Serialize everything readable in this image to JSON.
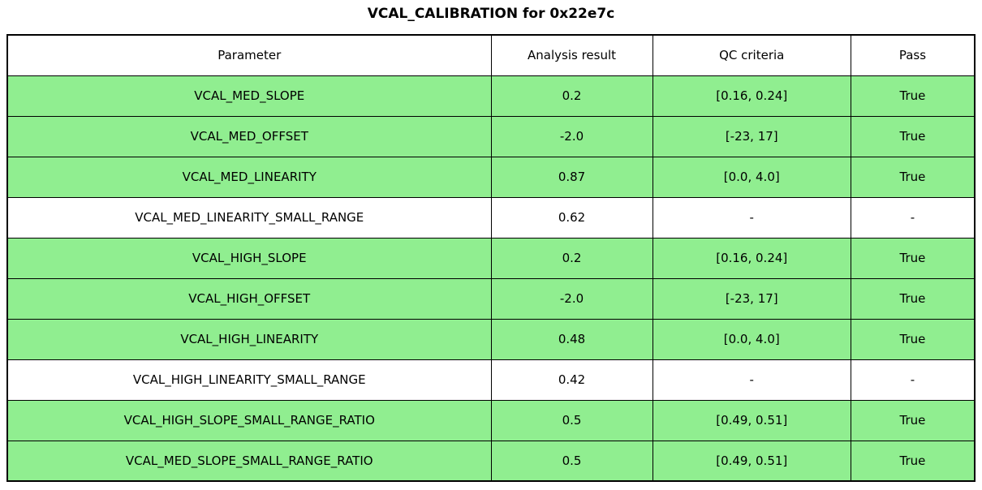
{
  "title": "VCAL_CALIBRATION for 0x22e7c",
  "colors": {
    "pass_row_green": "#90ee90",
    "neutral_row_white": "#ffffff",
    "border_black": "#000000"
  },
  "table": {
    "headers": [
      "Parameter",
      "Analysis result",
      "QC criteria",
      "Pass"
    ],
    "rows": [
      {
        "parameter": "VCAL_MED_SLOPE",
        "result": "0.2",
        "qc": "[0.16, 0.24]",
        "pass": "True",
        "state": "pass"
      },
      {
        "parameter": "VCAL_MED_OFFSET",
        "result": "-2.0",
        "qc": "[-23, 17]",
        "pass": "True",
        "state": "pass"
      },
      {
        "parameter": "VCAL_MED_LINEARITY",
        "result": "0.87",
        "qc": "[0.0, 4.0]",
        "pass": "True",
        "state": "pass"
      },
      {
        "parameter": "VCAL_MED_LINEARITY_SMALL_RANGE",
        "result": "0.62",
        "qc": "-",
        "pass": "-",
        "state": "neutral"
      },
      {
        "parameter": "VCAL_HIGH_SLOPE",
        "result": "0.2",
        "qc": "[0.16, 0.24]",
        "pass": "True",
        "state": "pass"
      },
      {
        "parameter": "VCAL_HIGH_OFFSET",
        "result": "-2.0",
        "qc": "[-23, 17]",
        "pass": "True",
        "state": "pass"
      },
      {
        "parameter": "VCAL_HIGH_LINEARITY",
        "result": "0.48",
        "qc": "[0.0, 4.0]",
        "pass": "True",
        "state": "pass"
      },
      {
        "parameter": "VCAL_HIGH_LINEARITY_SMALL_RANGE",
        "result": "0.42",
        "qc": "-",
        "pass": "-",
        "state": "neutral"
      },
      {
        "parameter": "VCAL_HIGH_SLOPE_SMALL_RANGE_RATIO",
        "result": "0.5",
        "qc": "[0.49, 0.51]",
        "pass": "True",
        "state": "pass"
      },
      {
        "parameter": "VCAL_MED_SLOPE_SMALL_RANGE_RATIO",
        "result": "0.5",
        "qc": "[0.49, 0.51]",
        "pass": "True",
        "state": "pass"
      }
    ]
  },
  "chart_data": {
    "type": "table",
    "title": "VCAL_CALIBRATION for 0x22e7c",
    "columns": [
      "Parameter",
      "Analysis result",
      "QC criteria",
      "Pass"
    ],
    "rows": [
      [
        "VCAL_MED_SLOPE",
        "0.2",
        "[0.16, 0.24]",
        "True"
      ],
      [
        "VCAL_MED_OFFSET",
        "-2.0",
        "[-23, 17]",
        "True"
      ],
      [
        "VCAL_MED_LINEARITY",
        "0.87",
        "[0.0, 4.0]",
        "True"
      ],
      [
        "VCAL_MED_LINEARITY_SMALL_RANGE",
        "0.62",
        "-",
        "-"
      ],
      [
        "VCAL_HIGH_SLOPE",
        "0.2",
        "[0.16, 0.24]",
        "True"
      ],
      [
        "VCAL_HIGH_OFFSET",
        "-2.0",
        "[-23, 17]",
        "True"
      ],
      [
        "VCAL_HIGH_LINEARITY",
        "0.48",
        "[0.0, 4.0]",
        "True"
      ],
      [
        "VCAL_HIGH_LINEARITY_SMALL_RANGE",
        "0.42",
        "-",
        "-"
      ],
      [
        "VCAL_HIGH_SLOPE_SMALL_RANGE_RATIO",
        "0.5",
        "[0.49, 0.51]",
        "True"
      ],
      [
        "VCAL_MED_SLOPE_SMALL_RANGE_RATIO",
        "0.5",
        "[0.49, 0.51]",
        "True"
      ]
    ],
    "row_highlight_color": "#90ee90",
    "layout": "title centered above full-width bordered table"
  }
}
